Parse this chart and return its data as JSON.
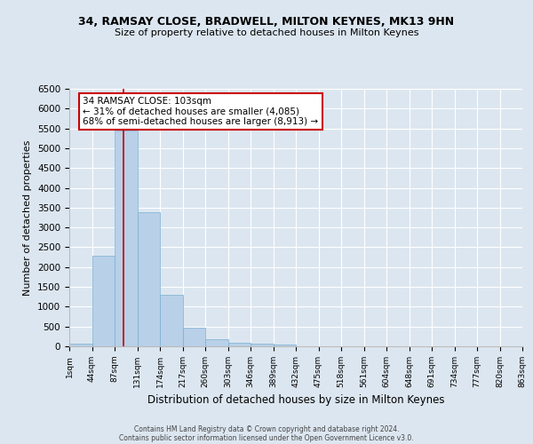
{
  "title1": "34, RAMSAY CLOSE, BRADWELL, MILTON KEYNES, MK13 9HN",
  "title2": "Size of property relative to detached houses in Milton Keynes",
  "xlabel": "Distribution of detached houses by size in Milton Keynes",
  "ylabel": "Number of detached properties",
  "bin_labels": [
    "1sqm",
    "44sqm",
    "87sqm",
    "131sqm",
    "174sqm",
    "217sqm",
    "260sqm",
    "303sqm",
    "346sqm",
    "389sqm",
    "432sqm",
    "475sqm",
    "518sqm",
    "561sqm",
    "604sqm",
    "648sqm",
    "691sqm",
    "734sqm",
    "777sqm",
    "820sqm",
    "863sqm"
  ],
  "bar_values": [
    75,
    2280,
    5450,
    3380,
    1300,
    480,
    185,
    100,
    70,
    35,
    0,
    0,
    0,
    0,
    0,
    0,
    0,
    0,
    0,
    0
  ],
  "bar_color": "#b8d0e8",
  "bar_edge_color": "#7aafd0",
  "background_color": "#dce6f0",
  "grid_color": "#ffffff",
  "vline_x": 2.38,
  "vline_color": "#cc0000",
  "annotation_text": "34 RAMSAY CLOSE: 103sqm\n← 31% of detached houses are smaller (4,085)\n68% of semi-detached houses are larger (8,913) →",
  "annotation_box_color": "#ffffff",
  "annotation_box_edge": "#cc0000",
  "ylim": [
    0,
    6500
  ],
  "yticks": [
    0,
    500,
    1000,
    1500,
    2000,
    2500,
    3000,
    3500,
    4000,
    4500,
    5000,
    5500,
    6000,
    6500
  ],
  "footer1": "Contains HM Land Registry data © Crown copyright and database right 2024.",
  "footer2": "Contains public sector information licensed under the Open Government Licence v3.0."
}
